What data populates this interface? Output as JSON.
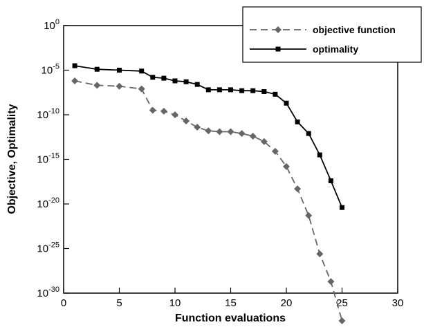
{
  "chart_data": {
    "type": "line",
    "xlabel": "Function evaluations",
    "ylabel": "Objective, Optimality",
    "xlim": [
      0,
      30
    ],
    "ylim_exponent": [
      -30,
      0
    ],
    "yscale": "log",
    "x_ticks": [
      "0",
      "5",
      "10",
      "15",
      "20",
      "25",
      "30"
    ],
    "y_tick_base": "10",
    "y_tick_exponents": [
      "0",
      "-5",
      "-10",
      "-15",
      "-20",
      "-25",
      "-30"
    ],
    "legend_position": "top-right",
    "grid": false,
    "series": [
      {
        "name": "objective function",
        "color": "#666666",
        "line_style": "dashed",
        "marker": "diamond",
        "x": [
          1,
          3,
          5,
          7,
          8,
          9,
          10,
          11,
          12,
          13,
          14,
          15,
          16,
          17,
          18,
          19,
          20,
          21,
          22,
          23,
          24,
          25
        ],
        "y_log10": [
          -6.2,
          -6.7,
          -6.8,
          -7.1,
          -9.5,
          -9.6,
          -10.0,
          -10.7,
          -11.4,
          -11.8,
          -11.9,
          -11.9,
          -12.1,
          -12.4,
          -13.0,
          -14.1,
          -15.8,
          -18.3,
          -21.3,
          -25.6,
          -28.7,
          -33.1
        ]
      },
      {
        "name": "optimality",
        "color": "#000000",
        "line_style": "solid",
        "marker": "square",
        "x": [
          1,
          3,
          5,
          7,
          8,
          9,
          10,
          11,
          12,
          13,
          14,
          15,
          16,
          17,
          18,
          19,
          20,
          21,
          22,
          23,
          24,
          25
        ],
        "y_log10": [
          -4.5,
          -4.9,
          -5.0,
          -5.1,
          -5.8,
          -5.9,
          -6.2,
          -6.3,
          -6.6,
          -7.2,
          -7.2,
          -7.2,
          -7.3,
          -7.3,
          -7.4,
          -7.7,
          -8.7,
          -10.8,
          -12.1,
          -14.5,
          -17.4,
          -20.4
        ]
      }
    ]
  }
}
